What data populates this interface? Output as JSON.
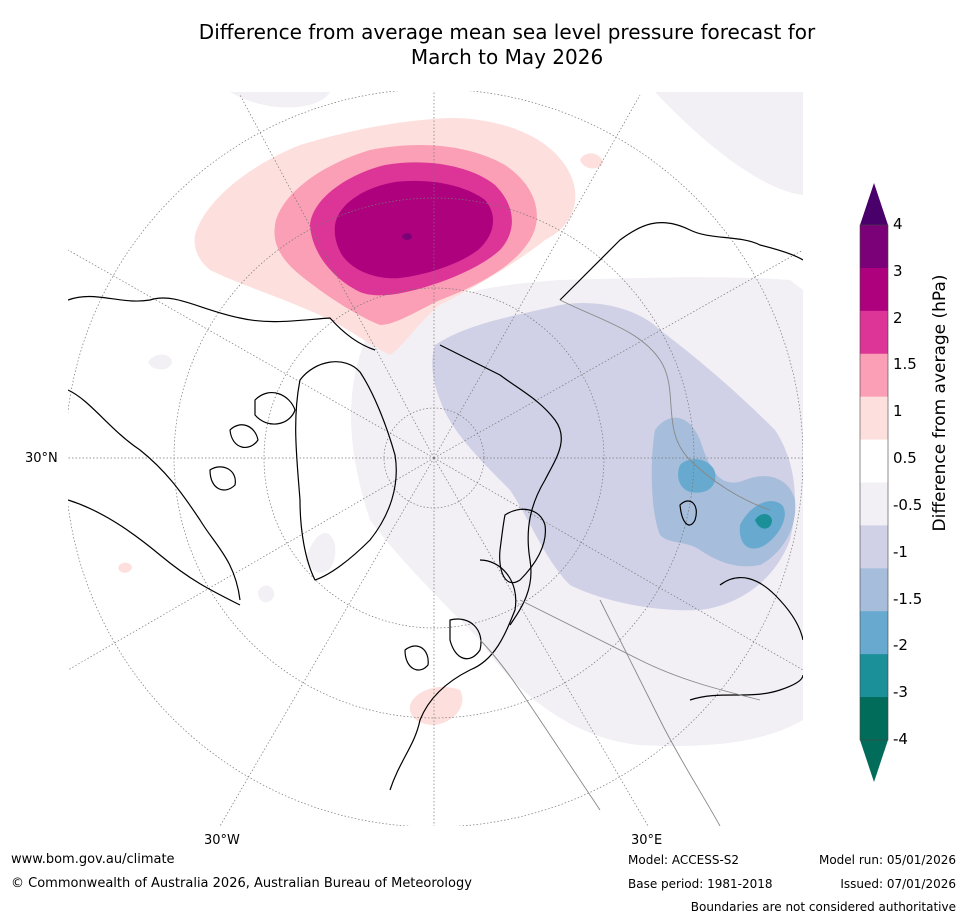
{
  "title": {
    "line1": "Difference from average mean sea level pressure forecast for",
    "line2": "March to May 2026"
  },
  "map": {
    "lat_labels": {
      "left": "30°N",
      "bottom_left": "30°W",
      "bottom_right": "30°E"
    }
  },
  "colorbar": {
    "title": "Difference from average (hPa)",
    "levels": [
      "4",
      "3",
      "2",
      "1.5",
      "1",
      "0.5",
      "-0.5",
      "-1",
      "-1.5",
      "-2",
      "-3",
      "-4"
    ],
    "colors": [
      "#7a0177",
      "#ae017e",
      "#dd3497",
      "#fa9fb5",
      "#fde0dd",
      "#ffffff",
      "#f2eff5",
      "#d0d1e6",
      "#a6bddb",
      "#67a9cf",
      "#1c9099",
      "#016c59"
    ],
    "over_color": "#49006a",
    "under_color": "#016c59"
  },
  "footer": {
    "website": "www.bom.gov.au/climate",
    "copyright": "© Commonwealth of Australia 2026, Australian Bureau of Meteorology",
    "model": "Model: ACCESS-S2",
    "model_run": "Model run: 05/01/2026",
    "base_period": "Base period: 1981-2018",
    "issued": "Issued: 07/01/2026",
    "disclaimer": "Boundaries are not considered authoritative"
  }
}
